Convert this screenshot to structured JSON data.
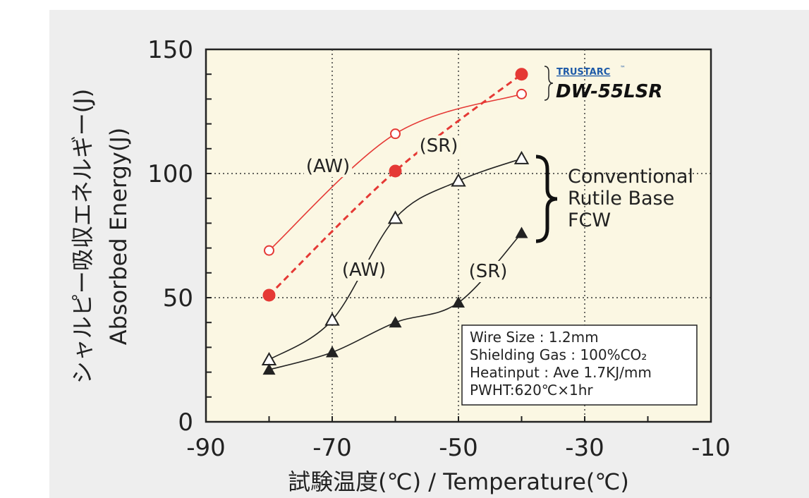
{
  "chart_data": {
    "type": "line",
    "xlabel": "試験温度(℃) / Temperature(℃)",
    "ylabel_jp": "シャルピー吸収エネルギー(J)",
    "ylabel_en": "Absorbed Energy(J)",
    "xlim": [
      -90,
      -10
    ],
    "ylim": [
      0,
      150
    ],
    "xticks": [
      "-90",
      "-70",
      "-50",
      "-30",
      "-10"
    ],
    "yticks": [
      "0",
      "50",
      "100",
      "150"
    ],
    "grid": "dotted at x=-70,-50,-30 and y=50,100",
    "series": [
      {
        "x": [
          -80,
          -60,
          -40
        ],
        "y": [
          69,
          116,
          132
        ],
        "marker": "open-circle",
        "line": "solid",
        "color": "#e53935"
      },
      {
        "x": [
          -80,
          -60,
          -40
        ],
        "y": [
          51,
          101,
          140
        ],
        "marker": "filled-circle",
        "line": "dashed",
        "color": "#e53935"
      },
      {
        "x": [
          -80,
          -70,
          -60,
          -50,
          -40
        ],
        "y": [
          25,
          41,
          82,
          97,
          106
        ],
        "marker": "open-triangle",
        "line": "solid",
        "color": "#222222"
      },
      {
        "x": [
          -80,
          -70,
          -60,
          -50,
          -40
        ],
        "y": [
          21,
          28,
          40,
          48,
          76
        ],
        "marker": "filled-triangle",
        "line": "solid",
        "color": "#222222"
      }
    ],
    "annotations": {
      "red_aw": "(AW)",
      "red_sr": "(SR)",
      "black_aw": "(AW)",
      "black_sr": "(SR)"
    },
    "legend": {
      "brand": "TRUSTARC",
      "tm": "™",
      "product": "DW-55LSR",
      "conventional": [
        "Conventional",
        "Rutile Base",
        "FCW"
      ]
    },
    "info_box": [
      "Wire Size : 1.2mm",
      "Shielding Gas : 100%CO₂",
      "Heatinput : Ave 1.7KJ/mm",
      "PWHT:620℃×1hr"
    ],
    "colors": {
      "plot_bg": "#fbf7e3",
      "panel_bg": "#eeeeee",
      "red": "#e53935",
      "black": "#222222",
      "brand_blue": "#1e5aa8"
    }
  }
}
